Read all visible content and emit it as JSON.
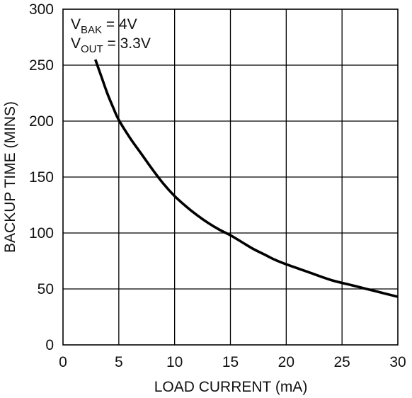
{
  "chart_data": {
    "type": "line",
    "title": "",
    "xlabel": "LOAD CURRENT (mA)",
    "ylabel": "BACKUP TIME (MINS)",
    "xlim": [
      0,
      30
    ],
    "ylim": [
      0,
      300
    ],
    "xticks": [
      0,
      5,
      10,
      15,
      20,
      25,
      30
    ],
    "yticks": [
      0,
      50,
      100,
      150,
      200,
      250,
      300
    ],
    "xtick_labels": [
      "0",
      "5",
      "10",
      "15",
      "20",
      "25",
      "30"
    ],
    "ytick_labels": [
      "0",
      "50",
      "100",
      "150",
      "200",
      "250",
      "300"
    ],
    "grid": true,
    "series": [
      {
        "color": "#000000",
        "x": [
          2.9,
          3.5,
          4.0,
          4.5,
          5.0,
          6.0,
          7.0,
          8.0,
          9.0,
          10.0,
          11.0,
          12.0,
          13.0,
          14.0,
          15.0,
          16.0,
          17.0,
          18.0,
          19.0,
          20.0,
          22.0,
          24.0,
          26.0,
          28.0,
          30.0
        ],
        "y": [
          255,
          238,
          224,
          212,
          201,
          185,
          171,
          157,
          144,
          133,
          124,
          116,
          109,
          103,
          98,
          92,
          86,
          81,
          76,
          72,
          65,
          58,
          53,
          48,
          43
        ]
      }
    ],
    "annotations": [
      {
        "main": "V",
        "sub": "BAK",
        "rest": " = 4V"
      },
      {
        "main": "V",
        "sub": "OUT",
        "rest": " = 3.3V"
      }
    ]
  }
}
